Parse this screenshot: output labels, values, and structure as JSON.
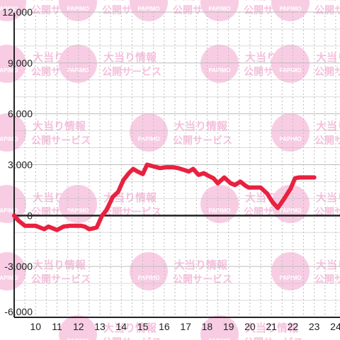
{
  "watermark": {
    "logo_text": "PAPIMO",
    "line1": "大当り情報",
    "line2": "公開サービス"
  },
  "colors": {
    "series": "#e8213f",
    "watermark": "#f8cde4"
  },
  "chart_data": {
    "type": "line",
    "title": "",
    "xlabel": "",
    "ylabel": "",
    "xlim": [
      9.0,
      24.2
    ],
    "ylim": [
      -6000,
      12000
    ],
    "x_ticks": [
      10,
      11,
      12,
      13,
      14,
      15,
      16,
      17,
      18,
      19,
      20,
      21,
      22,
      23,
      24
    ],
    "y_ticks": [
      {
        "value": 12000,
        "label": "12,000"
      },
      {
        "value": 9000,
        "label": "9,000"
      },
      {
        "value": 6000,
        "label": "6,000"
      },
      {
        "value": 3000,
        "label": "3,000"
      },
      {
        "value": 0,
        "label": "0"
      },
      {
        "value": -3000,
        "label": "-3,000"
      },
      {
        "value": -6000,
        "label": "-6,000"
      }
    ],
    "grid": true,
    "series": [
      {
        "x": [
          9.0,
          9.2,
          9.5,
          9.7,
          10.0,
          10.2,
          10.4,
          10.6,
          10.8,
          11.0,
          11.3,
          11.6,
          11.9,
          12.1,
          12.3,
          12.5,
          12.7,
          12.85,
          13.1,
          13.3,
          13.6,
          13.85,
          14.1,
          14.35,
          14.55,
          14.75,
          15.0,
          15.2,
          15.5,
          15.8,
          16.1,
          16.4,
          16.65,
          16.9,
          17.15,
          17.35,
          17.6,
          17.85,
          18.05,
          18.3,
          18.5,
          18.8,
          19.1,
          19.3,
          19.55,
          19.8,
          19.95,
          20.2,
          20.5,
          20.8,
          21.05,
          21.3,
          21.6,
          21.9,
          22.1,
          22.3,
          22.6,
          22.8,
          23.0
        ],
        "y": [
          0,
          -300,
          -600,
          -600,
          -600,
          -700,
          -800,
          -650,
          -750,
          -850,
          -650,
          -600,
          -600,
          -600,
          -650,
          -800,
          -750,
          -700,
          0,
          300,
          1100,
          1400,
          2100,
          2500,
          2750,
          2600,
          2450,
          3000,
          2900,
          2800,
          2850,
          2850,
          2800,
          2700,
          2600,
          2750,
          2400,
          2500,
          2350,
          2200,
          1900,
          2250,
          1900,
          1800,
          2000,
          1750,
          1650,
          1650,
          1650,
          1300,
          800,
          450,
          1000,
          1600,
          2200,
          2250,
          2250,
          2250,
          2250
        ]
      }
    ]
  }
}
